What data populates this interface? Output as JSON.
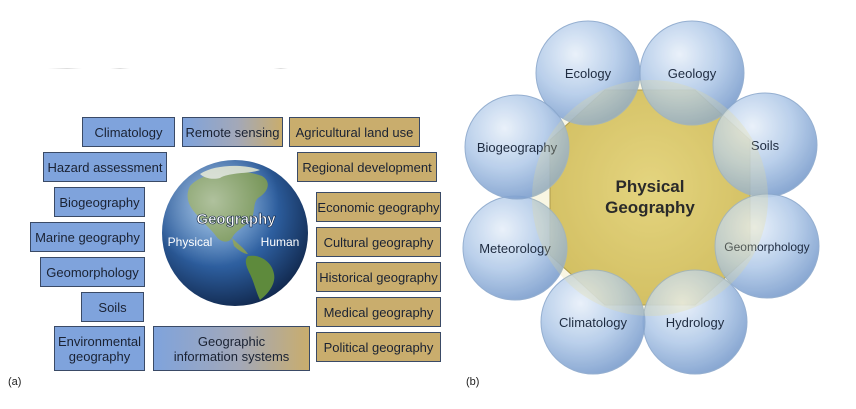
{
  "panel_a": {
    "label": "(a)",
    "globe": {
      "title": "Geography",
      "left_label": "Physical",
      "right_label": "Human"
    },
    "boxes": {
      "climatology": "Climatology",
      "remote_sensing": "Remote sensing",
      "agricultural_land_use": "Agricultural land use",
      "hazard_assessment": "Hazard assessment",
      "regional_development": "Regional development",
      "biogeography": "Biogeography",
      "economic_geography": "Economic geography",
      "marine_geography": "Marine geography",
      "cultural_geography": "Cultural geography",
      "geomorphology": "Geomorphology",
      "historical_geography": "Historical geography",
      "soils": "Soils",
      "medical_geography": "Medical geography",
      "environmental_geography": "Environmental geography",
      "gis": "Geographic information systems",
      "political_geography": "Political geography"
    },
    "colors": {
      "physical": "#7fa3dc",
      "human": "#c9ad6d"
    }
  },
  "panel_b": {
    "label": "(b)",
    "center": {
      "line1": "Physical",
      "line2": "Geography"
    },
    "circles": {
      "ecology": "Ecology",
      "geology": "Geology",
      "soils": "Soils",
      "geomorphology": "Geomorphology",
      "hydrology": "Hydrology",
      "climatology": "Climatology",
      "meteorology": "Meteorology",
      "biogeography": "Biogeography"
    },
    "colors": {
      "circle": "#a9c4e6",
      "center": "#d8c66a"
    }
  }
}
